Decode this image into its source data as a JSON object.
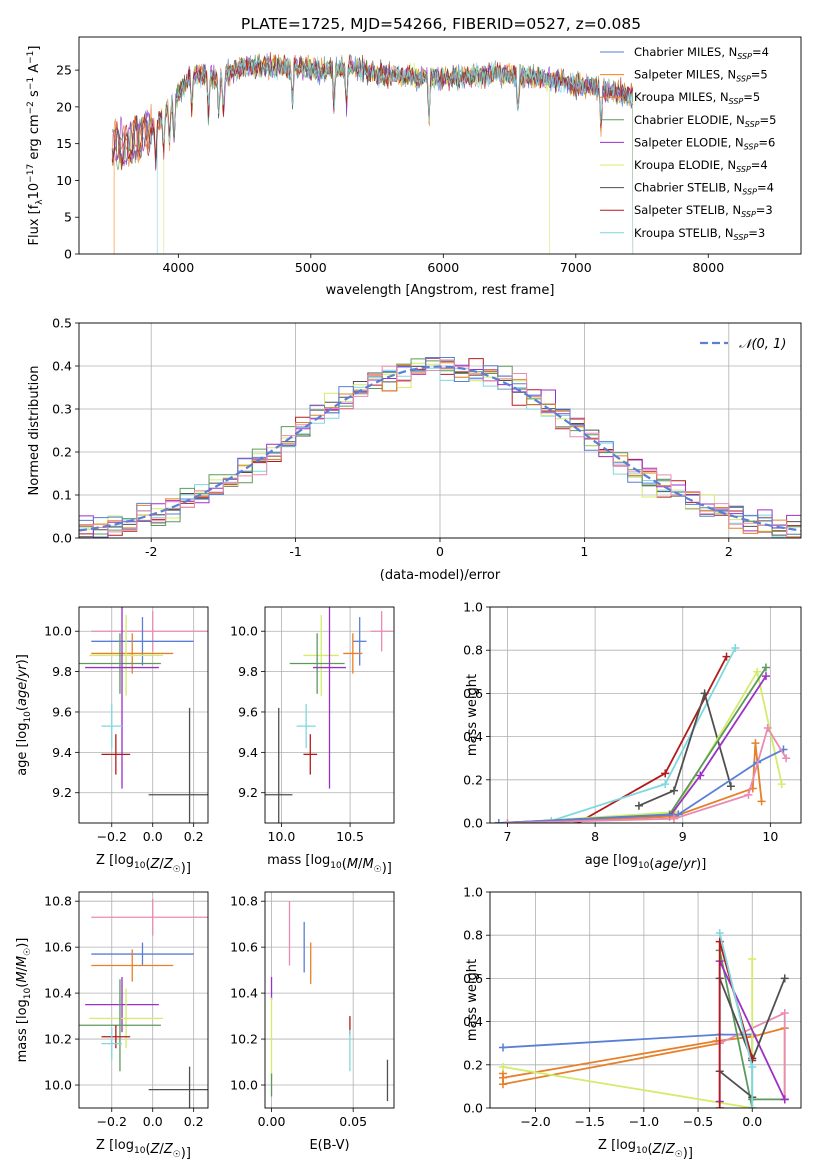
{
  "figure": {
    "title": "PLATE=1725, MJD=54266, FIBERID=0527, z=0.085"
  },
  "colors": {
    "Chabrier MILES": "#5a7fd6",
    "Salpeter MILES": "#ff7f0e",
    "Kroupa MILES": "#e7802a",
    "Chabrier ELODIE": "#5c9a5c",
    "Salpeter ELODIE": "#9b30c9",
    "Kroupa ELODIE": "#d2ec6c",
    "Chabrier STELIB": "#505050",
    "Salpeter STELIB": "#b31b1b",
    "Kroupa STELIB": "#7fd8e0",
    "Kroupa pink": "#e98bb3"
  },
  "chart_data": [
    {
      "id": "spectrum",
      "type": "line",
      "title": "PLATE=1725, MJD=54266, FIBERID=0527, z=0.085",
      "xlabel": "wavelength [Angstrom, rest frame]",
      "ylabel": "Flux [f_λ10^-17 erg cm^-2 s^-1 A^-1]",
      "xlim": [
        3250,
        8700
      ],
      "ylim": [
        0,
        29.5
      ],
      "xticks": [
        4000,
        5000,
        6000,
        7000,
        8000
      ],
      "yticks": [
        0,
        5,
        10,
        15,
        20,
        25
      ],
      "legend_position": "top-right",
      "series": [
        {
          "name": "Chabrier MILES, N_SSP=4",
          "label_main": "Chabrier MILES, N",
          "label_sub": "SSP",
          "label_tail": "=4",
          "color": "#5a7fd6"
        },
        {
          "name": "Salpeter MILES, N_SSP=5",
          "label_main": "Salpeter MILES, N",
          "label_sub": "SSP",
          "label_tail": "=5",
          "color": "#ff7f0e"
        },
        {
          "name": "Kroupa MILES, N_SSP=5",
          "label_main": "Kroupa MILES, N",
          "label_sub": "SSP",
          "label_tail": "=5",
          "color": "#e7802a"
        },
        {
          "name": "Chabrier ELODIE, N_SSP=5",
          "label_main": "Chabrier ELODIE, N",
          "label_sub": "SSP",
          "label_tail": "=5",
          "color": "#5c9a5c"
        },
        {
          "name": "Salpeter ELODIE, N_SSP=6",
          "label_main": "Salpeter ELODIE, N",
          "label_sub": "SSP",
          "label_tail": "=6",
          "color": "#9b30c9"
        },
        {
          "name": "Kroupa ELODIE, N_SSP=4",
          "label_main": "Kroupa ELODIE, N",
          "label_sub": "SSP",
          "label_tail": "=4",
          "color": "#d2ec6c"
        },
        {
          "name": "Chabrier STELIB, N_SSP=4",
          "label_main": "Chabrier STELIB, N",
          "label_sub": "SSP",
          "label_tail": "=4",
          "color": "#505050"
        },
        {
          "name": "Salpeter STELIB, N_SSP=3",
          "label_main": "Salpeter STELIB, N",
          "label_sub": "SSP",
          "label_tail": "=3",
          "color": "#b31b1b"
        },
        {
          "name": "Kroupa STELIB, N_SSP=3",
          "label_main": "Kroupa STELIB, N",
          "label_sub": "SSP",
          "label_tail": "=3",
          "color": "#7fd8e0"
        }
      ],
      "spectrum_shape": {
        "x": [
          3500,
          3600,
          3700,
          3800,
          3900,
          4000,
          4100,
          4300,
          4500,
          4800,
          5100,
          5300,
          5500,
          5800,
          6100,
          6400,
          6700,
          7000,
          7300,
          7600,
          8000,
          8400,
          8700
        ],
        "y": [
          15.0,
          14.5,
          16.0,
          17.0,
          19.5,
          21.5,
          24.5,
          24.0,
          25.5,
          25.5,
          25.0,
          25.5,
          24.5,
          24.0,
          24.0,
          24.5,
          24.0,
          23.0,
          22.0,
          21.0,
          19.5,
          19.0,
          18.5
        ]
      },
      "edges": [
        {
          "series": "Salpeter MILES",
          "x_start": 3515,
          "x_end": 7430
        },
        {
          "series": "Kroupa ELODIE",
          "x_start": 3890,
          "x_end": 6800
        },
        {
          "series": "Kroupa STELIB",
          "x_start": 3840,
          "x_end": 7430
        }
      ]
    },
    {
      "id": "residuals",
      "type": "line",
      "xlabel": "(data-model)/error",
      "ylabel": "Normed distribution",
      "xlim": [
        -2.5,
        2.5
      ],
      "ylim": [
        0,
        0.5
      ],
      "xticks": [
        -2,
        -1,
        0,
        1,
        2
      ],
      "yticks": [
        0.0,
        0.1,
        0.2,
        0.3,
        0.4,
        0.5
      ],
      "legend_position": "top-right",
      "gaussian_label": "𝒩(0, 1)",
      "gaussian_color": "#5a7fd6",
      "bin_width": 0.1
    },
    {
      "id": "age_vs_Z",
      "type": "scatter",
      "xlabel": "Z [log10(Z/Z☉)]",
      "ylabel": "age  [log10(age/yr)]",
      "xlim": [
        -0.36,
        0.27
      ],
      "ylim": [
        9.05,
        10.12
      ],
      "xticks": [
        -0.2,
        0.0,
        0.2
      ],
      "xtick_labels": [
        "−0.2",
        "0.0",
        "0.2"
      ],
      "yticks": [
        9.2,
        9.4,
        9.6,
        9.8,
        10.0
      ],
      "points": [
        {
          "series": "Kroupa pink",
          "x": 0.0,
          "xerr": 0.3,
          "y": 10.0,
          "yerr": 0.1,
          "color": "#e98bb3"
        },
        {
          "series": "Chabrier MILES",
          "x": -0.05,
          "xerr": 0.25,
          "y": 9.95,
          "yerr": 0.12,
          "color": "#5a7fd6"
        },
        {
          "series": "Salpeter MILES",
          "x": -0.1,
          "xerr": 0.2,
          "y": 9.89,
          "yerr": 0.1,
          "color": "#e7802a"
        },
        {
          "series": "Kroupa ELODIE",
          "x": -0.13,
          "xerr": 0.18,
          "y": 9.88,
          "yerr": 0.2,
          "color": "#d2ec6c"
        },
        {
          "series": "Chabrier ELODIE",
          "x": -0.16,
          "xerr": 0.2,
          "y": 9.84,
          "yerr": 0.15,
          "color": "#5c9a5c"
        },
        {
          "series": "Salpeter ELODIE",
          "x": -0.15,
          "xerr": 0.18,
          "y": 9.82,
          "yerr": 0.6,
          "color": "#9b30c9"
        },
        {
          "series": "Kroupa STELIB",
          "x": -0.2,
          "xerr": 0.05,
          "y": 9.53,
          "yerr": 0.11,
          "color": "#7fd8e0"
        },
        {
          "series": "Salpeter STELIB",
          "x": -0.18,
          "xerr": 0.07,
          "y": 9.39,
          "yerr": 0.1,
          "color": "#b31b1b"
        },
        {
          "series": "Chabrier STELIB",
          "x": 0.18,
          "xerr": 0.2,
          "y": 9.19,
          "yerr": 0.43,
          "color": "#505050"
        }
      ]
    },
    {
      "id": "age_vs_mass",
      "type": "scatter",
      "xlabel": "mass [log10(M/M☉)]",
      "ylabel": "",
      "xlim": [
        9.88,
        10.82
      ],
      "ylim": [
        9.05,
        10.12
      ],
      "xticks": [
        10.0,
        10.5
      ],
      "xtick_labels": [
        "10.0",
        "10.5"
      ],
      "yticks": [
        9.2,
        9.4,
        9.6,
        9.8,
        10.0
      ],
      "points": [
        {
          "series": "Kroupa pink",
          "x": 10.73,
          "xerr": 0.08,
          "y": 10.0,
          "yerr": 0.1,
          "color": "#e98bb3"
        },
        {
          "series": "Chabrier MILES",
          "x": 10.57,
          "xerr": 0.05,
          "y": 9.95,
          "yerr": 0.12,
          "color": "#5a7fd6"
        },
        {
          "series": "Salpeter MILES",
          "x": 10.52,
          "xerr": 0.07,
          "y": 9.89,
          "yerr": 0.1,
          "color": "#e7802a"
        },
        {
          "series": "Kroupa ELODIE",
          "x": 10.29,
          "xerr": 0.13,
          "y": 9.88,
          "yerr": 0.2,
          "color": "#d2ec6c"
        },
        {
          "series": "Chabrier ELODIE",
          "x": 10.26,
          "xerr": 0.2,
          "y": 9.84,
          "yerr": 0.15,
          "color": "#5c9a5c"
        },
        {
          "series": "Salpeter ELODIE",
          "x": 10.35,
          "xerr": 0.12,
          "y": 9.82,
          "yerr": 0.6,
          "color": "#9b30c9"
        },
        {
          "series": "Kroupa STELIB",
          "x": 10.18,
          "xerr": 0.07,
          "y": 9.53,
          "yerr": 0.11,
          "color": "#7fd8e0"
        },
        {
          "series": "Salpeter STELIB",
          "x": 10.21,
          "xerr": 0.05,
          "y": 9.39,
          "yerr": 0.1,
          "color": "#b31b1b"
        },
        {
          "series": "Chabrier STELIB",
          "x": 9.98,
          "xerr": 0.1,
          "y": 9.19,
          "yerr": 0.43,
          "color": "#505050"
        }
      ]
    },
    {
      "id": "mass_weight_vs_age",
      "type": "line",
      "xlabel": "age  [log10(age/yr)]",
      "ylabel": "mass weight",
      "xlim": [
        6.8,
        10.35
      ],
      "ylim": [
        0.0,
        1.0
      ],
      "xticks": [
        7,
        8,
        9,
        10
      ],
      "yticks": [
        0.0,
        0.2,
        0.4,
        0.6,
        0.8,
        1.0
      ],
      "series": [
        {
          "name": "Salpeter STELIB",
          "color": "#b31b1b",
          "x": [
            7.8,
            8.8,
            9.5
          ],
          "y": [
            0.0,
            0.23,
            0.77
          ]
        },
        {
          "name": "Kroupa STELIB",
          "color": "#7fd8e0",
          "x": [
            7.5,
            8.8,
            9.6
          ],
          "y": [
            0.01,
            0.18,
            0.81
          ]
        },
        {
          "name": "Chabrier STELIB",
          "color": "#505050",
          "x": [
            8.5,
            8.9,
            9.25,
            9.55
          ],
          "y": [
            0.08,
            0.15,
            0.6,
            0.17
          ]
        },
        {
          "name": "Kroupa ELODIE",
          "color": "#d2ec6c",
          "x": [
            7.0,
            8.9,
            9.85,
            10.13
          ],
          "y": [
            0.0,
            0.05,
            0.7,
            0.18
          ]
        },
        {
          "name": "Chabrier ELODIE",
          "color": "#5c9a5c",
          "x": [
            6.9,
            8.85,
            9.95
          ],
          "y": [
            0.0,
            0.04,
            0.72
          ]
        },
        {
          "name": "Salpeter ELODIE",
          "color": "#9b30c9",
          "x": [
            6.9,
            8.85,
            9.2,
            9.95
          ],
          "y": [
            0.0,
            0.03,
            0.22,
            0.68
          ]
        },
        {
          "name": "Salpeter MILES",
          "color": "#e7802a",
          "x": [
            6.9,
            8.9,
            9.8,
            9.83,
            9.9
          ],
          "y": [
            0.0,
            0.03,
            0.16,
            0.37,
            0.1
          ]
        },
        {
          "name": "Chabrier MILES",
          "color": "#5a7fd6",
          "x": [
            6.9,
            8.95,
            9.85,
            10.15
          ],
          "y": [
            0.0,
            0.04,
            0.28,
            0.34
          ]
        },
        {
          "name": "Kroupa pink",
          "color": "#e98bb3",
          "x": [
            7.0,
            8.9,
            9.75,
            9.97,
            10.18
          ],
          "y": [
            0.0,
            0.02,
            0.13,
            0.44,
            0.3
          ]
        }
      ]
    },
    {
      "id": "mass_vs_Z",
      "type": "scatter",
      "xlabel": "Z [log10(Z/Z☉)]",
      "ylabel": "mass [log10(M/M☉)]",
      "xlim": [
        -0.36,
        0.27
      ],
      "ylim": [
        9.9,
        10.84
      ],
      "xticks": [
        -0.2,
        0.0,
        0.2
      ],
      "xtick_labels": [
        "−0.2",
        "0.0",
        "0.2"
      ],
      "yticks": [
        10.0,
        10.2,
        10.4,
        10.6,
        10.8
      ],
      "points": [
        {
          "series": "Kroupa pink",
          "x": 0.0,
          "xerr": 0.3,
          "y": 10.73,
          "yerr": 0.08,
          "color": "#e98bb3"
        },
        {
          "series": "Chabrier MILES",
          "x": -0.05,
          "xerr": 0.25,
          "y": 10.57,
          "yerr": 0.05,
          "color": "#5a7fd6"
        },
        {
          "series": "Salpeter MILES",
          "x": -0.1,
          "xerr": 0.2,
          "y": 10.52,
          "yerr": 0.07,
          "color": "#e7802a"
        },
        {
          "series": "Salpeter ELODIE",
          "x": -0.15,
          "xerr": 0.18,
          "y": 10.35,
          "yerr": 0.12,
          "color": "#9b30c9"
        },
        {
          "series": "Kroupa ELODIE",
          "x": -0.13,
          "xerr": 0.18,
          "y": 10.29,
          "yerr": 0.13,
          "color": "#d2ec6c"
        },
        {
          "series": "Chabrier ELODIE",
          "x": -0.16,
          "xerr": 0.2,
          "y": 10.26,
          "yerr": 0.2,
          "color": "#5c9a5c"
        },
        {
          "series": "Salpeter STELIB",
          "x": -0.18,
          "xerr": 0.07,
          "y": 10.21,
          "yerr": 0.05,
          "color": "#b31b1b"
        },
        {
          "series": "Kroupa STELIB",
          "x": -0.2,
          "xerr": 0.05,
          "y": 10.18,
          "yerr": 0.07,
          "color": "#7fd8e0"
        },
        {
          "series": "Chabrier STELIB",
          "x": 0.18,
          "xerr": 0.2,
          "y": 9.98,
          "yerr": 0.1,
          "color": "#505050"
        }
      ]
    },
    {
      "id": "mass_vs_EBV",
      "type": "scatter",
      "xlabel": "E(B-V)",
      "ylabel": "",
      "xlim": [
        -0.004,
        0.075
      ],
      "ylim": [
        9.9,
        10.84
      ],
      "xticks": [
        0.0,
        0.05
      ],
      "xtick_labels": [
        "0.00",
        "0.05"
      ],
      "yticks": [
        10.0,
        10.2,
        10.4,
        10.6,
        10.8
      ],
      "points": [
        {
          "series": "Kroupa pink",
          "x": 0.011,
          "y": 10.66,
          "yerr": 0.14,
          "color": "#e98bb3"
        },
        {
          "series": "Chabrier MILES",
          "x": 0.02,
          "y": 10.6,
          "yerr": 0.11,
          "color": "#5a7fd6"
        },
        {
          "series": "Salpeter MILES",
          "x": 0.024,
          "y": 10.53,
          "yerr": 0.09,
          "color": "#e7802a"
        },
        {
          "series": "Salpeter ELODIE",
          "x": 0.0,
          "y": 10.42,
          "yerr": 0.05,
          "color": "#9b30c9"
        },
        {
          "series": "Kroupa ELODIE",
          "x": 0.0,
          "y": 10.2,
          "yerr": 0.18,
          "color": "#d2ec6c"
        },
        {
          "series": "Chabrier ELODIE",
          "x": 0.0,
          "y": 10.0,
          "yerr": 0.05,
          "color": "#5c9a5c"
        },
        {
          "series": "Salpeter STELIB",
          "x": 0.048,
          "y": 10.26,
          "yerr": 0.04,
          "color": "#b31b1b"
        },
        {
          "series": "Kroupa STELIB",
          "x": 0.048,
          "y": 10.15,
          "yerr": 0.09,
          "color": "#7fd8e0"
        },
        {
          "series": "Chabrier STELIB",
          "x": 0.071,
          "y": 10.02,
          "yerr": 0.09,
          "color": "#505050"
        }
      ]
    },
    {
      "id": "mass_weight_vs_Z",
      "type": "line",
      "xlabel": "Z [log10(Z/Z☉)]",
      "ylabel": "mass weight",
      "xlim": [
        -2.42,
        0.45
      ],
      "ylim": [
        0.0,
        1.0
      ],
      "xticks": [
        -2.0,
        -1.5,
        -1.0,
        -0.5,
        0.0
      ],
      "xtick_labels": [
        "−2.0",
        "−1.5",
        "−1.0",
        "−0.5",
        "0.0"
      ],
      "yticks": [
        0.0,
        0.2,
        0.4,
        0.6,
        0.8,
        1.0
      ],
      "series": [
        {
          "name": "Chabrier MILES",
          "color": "#5a7fd6",
          "x": [
            -2.3,
            -0.3,
            0.0,
            0.0
          ],
          "y": [
            0.28,
            0.34,
            0.34,
            0.04
          ]
        },
        {
          "name": "Salpeter MILES",
          "color": "#e7802a",
          "x": [
            -2.3,
            -0.33,
            0.0,
            0.3,
            0.3
          ],
          "y": [
            0.14,
            0.31,
            0.33,
            0.37,
            0.04
          ]
        },
        {
          "name": "Kroupa MILES",
          "color": "#e7802a",
          "x": [
            -2.3,
            -2.3,
            -0.3
          ],
          "y": [
            0.16,
            0.11,
            0.3
          ]
        },
        {
          "name": "Kroupa pink",
          "color": "#e98bb3",
          "x": [
            -0.3,
            0.3,
            0.3
          ],
          "y": [
            0.3,
            0.44,
            0.04
          ]
        },
        {
          "name": "Kroupa ELODIE",
          "color": "#d2ec6c",
          "x": [
            -2.3,
            0.0,
            0.0
          ],
          "y": [
            0.19,
            0.0,
            0.69
          ]
        },
        {
          "name": "Chabrier ELODIE",
          "color": "#5c9a5c",
          "x": [
            -0.3,
            0.0,
            0.0,
            0.3
          ],
          "y": [
            0.73,
            0.0,
            0.04,
            0.04
          ]
        },
        {
          "name": "Salpeter ELODIE",
          "color": "#9b30c9",
          "x": [
            -0.3,
            -0.3,
            0.3
          ],
          "y": [
            0.03,
            0.68,
            0.04
          ]
        },
        {
          "name": "Chabrier STELIB",
          "color": "#505050",
          "x": [
            -0.3,
            0.0,
            0.3
          ],
          "y": [
            0.6,
            0.22,
            0.6
          ]
        },
        {
          "name": "Chabrier STELIB b",
          "color": "#505050",
          "x": [
            -0.3,
            0.0
          ],
          "y": [
            0.17,
            0.05
          ]
        },
        {
          "name": "Salpeter STELIB",
          "color": "#b31b1b",
          "x": [
            -0.3,
            -0.3,
            0.0
          ],
          "y": [
            0.0,
            0.77,
            0.23
          ]
        },
        {
          "name": "Kroupa STELIB",
          "color": "#7fd8e0",
          "x": [
            -0.3,
            0.0,
            0.0
          ],
          "y": [
            0.81,
            0.19,
            0.0
          ]
        }
      ]
    }
  ]
}
